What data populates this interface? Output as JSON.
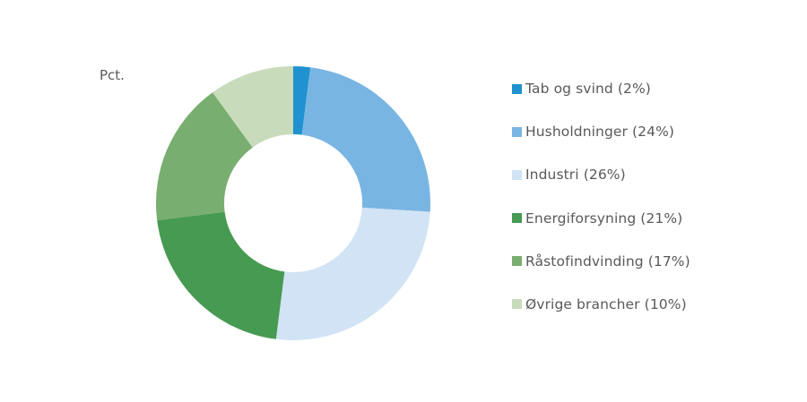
{
  "chart_data": {
    "type": "pie",
    "variant": "donut",
    "unit_label": "Pct.",
    "start_angle_deg": 0,
    "direction": "clockwise",
    "slices": [
      {
        "label": "Tab og svind (2%)",
        "value": 2,
        "color": "#2092d0"
      },
      {
        "label": "Husholdninger (24%)",
        "value": 24,
        "color": "#78b5e3"
      },
      {
        "label": "Industri (26%)",
        "value": 26,
        "color": "#d1e3f5"
      },
      {
        "label": "Energiforsyning (21%)",
        "value": 21,
        "color": "#469a51"
      },
      {
        "label": "Råstofindvinding (17%)",
        "value": 17,
        "color": "#78ae6f"
      },
      {
        "label": "Øvrige brancher (10%)",
        "value": 10,
        "color": "#c8dbbb"
      }
    ],
    "legend_position": "right"
  }
}
